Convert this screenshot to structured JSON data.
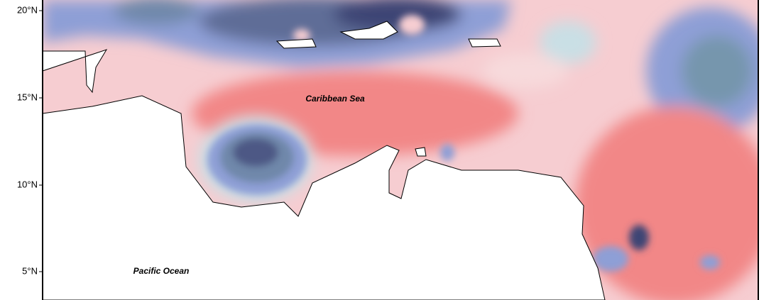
{
  "axis": {
    "y_ticks": [
      "20°N",
      "15°N",
      "10°N",
      "5°N"
    ]
  },
  "labels": [
    {
      "text": "Caribbean Sea"
    },
    {
      "text": "Pacific Ocean"
    }
  ]
}
